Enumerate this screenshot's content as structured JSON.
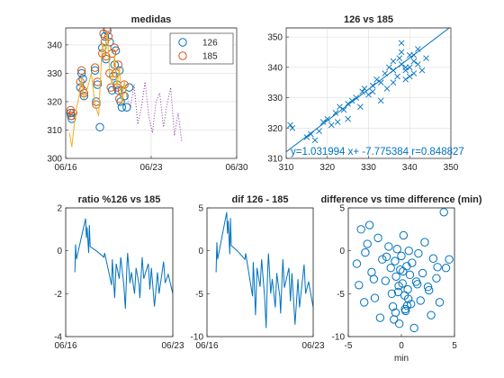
{
  "figure": {
    "background": "#ffffff"
  },
  "chart_data": [
    {
      "id": "medidas",
      "type": "line",
      "title": "medidas",
      "xlabel": "",
      "ylabel": "",
      "xlim": [
        0,
        14
      ],
      "ylim": [
        300,
        346
      ],
      "xticks": [
        0,
        7,
        14
      ],
      "xtick_labels": [
        "06/16",
        "06/23",
        "06/30"
      ],
      "yticks": [
        300,
        310,
        320,
        330,
        340
      ],
      "grid": true,
      "legend": {
        "location": "top-right",
        "entries": [
          "126",
          "185"
        ]
      },
      "series": [
        {
          "name": "126",
          "color": "#0072BD",
          "marker": "circle",
          "x": [
            0.4,
            0.45,
            0.5,
            1.2,
            1.3,
            1.4,
            1.5,
            2.4,
            2.5,
            2.6,
            2.8,
            3.0,
            3.2,
            3.3,
            3.4,
            3.6,
            3.8,
            3.9,
            4.0,
            4.1,
            4.2,
            4.3,
            4.4,
            4.5,
            4.6,
            4.8,
            5.0,
            5.2
          ],
          "y": [
            316,
            315,
            314,
            325,
            330,
            328,
            322,
            331,
            320,
            326,
            311,
            339,
            343,
            335,
            345,
            341,
            324,
            329,
            333,
            338,
            326,
            324,
            331,
            320,
            318,
            322,
            318,
            325
          ]
        },
        {
          "name": "185",
          "color": "#D95319",
          "marker": "circle",
          "x": [
            0.4,
            0.5,
            0.6,
            1.2,
            1.3,
            1.4,
            1.5,
            2.4,
            2.5,
            2.6,
            3.0,
            3.1,
            3.2,
            3.3,
            3.4,
            3.5,
            3.6,
            3.7,
            3.8,
            4.0,
            4.1,
            4.2,
            4.3,
            4.4,
            4.6,
            4.8
          ],
          "y": [
            317,
            315,
            316,
            327,
            331,
            324,
            323,
            332,
            319,
            327,
            337,
            344,
            341,
            336,
            346,
            343,
            330,
            325,
            337,
            339,
            330,
            325,
            333,
            321,
            324,
            326
          ]
        },
        {
          "name": "",
          "color": "#EDB120",
          "style": "line",
          "x": [
            0.3,
            0.5,
            0.7,
            0.9,
            1.1,
            1.3,
            1.5,
            1.8,
            2.1,
            2.4,
            2.7,
            3.0,
            3.2,
            3.4,
            3.6,
            3.8,
            4.0,
            4.2,
            4.4,
            4.6,
            4.8,
            5.0
          ],
          "y": [
            309,
            304,
            312,
            318,
            322,
            328,
            321,
            325,
            330,
            319,
            315,
            341,
            336,
            345,
            330,
            326,
            337,
            325,
            332,
            319,
            327,
            322
          ]
        },
        {
          "name": "",
          "color": "#7E2F8E",
          "style": "dotted",
          "x": [
            5.0,
            5.3,
            5.6,
            5.9,
            6.2,
            6.5,
            6.8,
            7.1,
            7.4,
            7.7,
            8.0,
            8.3,
            8.6,
            8.9,
            9.2,
            9.5
          ],
          "y": [
            322,
            318,
            326,
            312,
            318,
            327,
            315,
            309,
            320,
            323,
            311,
            319,
            325,
            308,
            316,
            306
          ]
        }
      ]
    },
    {
      "id": "scatter",
      "type": "scatter",
      "title": "126 vs 185",
      "xlim": [
        310,
        350
      ],
      "ylim": [
        310,
        353
      ],
      "xticks": [
        310,
        320,
        330,
        340,
        350
      ],
      "yticks": [
        310,
        320,
        330,
        340,
        350
      ],
      "grid": true,
      "annotation": "y=1.031994 x+ -7.775384 r=0.848827",
      "fit": {
        "slope": 1.031994,
        "intercept": -7.775384
      },
      "series": [
        {
          "name": "",
          "color": "#0072BD",
          "marker": "x",
          "x": [
            311,
            311.5,
            315,
            316,
            317,
            318,
            319,
            320,
            321,
            322,
            322.5,
            323,
            324,
            325,
            325,
            326,
            327,
            328,
            328.5,
            329,
            330,
            331,
            332,
            333,
            334,
            334.5,
            335,
            336,
            336,
            337,
            337.5,
            338,
            338,
            339,
            339,
            340,
            340,
            341,
            341,
            342,
            342,
            343,
            344,
            336,
            338,
            340,
            339,
            341,
            333,
            331
          ],
          "y": [
            321,
            320,
            317,
            318,
            316,
            319,
            322,
            323,
            321,
            325,
            322,
            327,
            326,
            328,
            323,
            329,
            330,
            327,
            332,
            333,
            331,
            334,
            336,
            335,
            338,
            333,
            340,
            339,
            342,
            337,
            343,
            341,
            345,
            339,
            336,
            340,
            344,
            338,
            342,
            341,
            346,
            339,
            343,
            335,
            348,
            337,
            340,
            344,
            329,
            332
          ]
        }
      ]
    },
    {
      "id": "ratio",
      "type": "line",
      "title": "ratio %126 vs 185",
      "xlim": [
        0,
        7
      ],
      "ylim": [
        -4,
        2
      ],
      "xticks": [
        0,
        7
      ],
      "xtick_labels": [
        "06/16",
        "06/23"
      ],
      "yticks": [
        -4,
        -2,
        0,
        2
      ],
      "grid": false,
      "series": [
        {
          "name": "",
          "color": "#0072BD",
          "x": [
            0.6,
            0.65,
            0.7,
            1.3,
            1.35,
            1.4,
            1.5,
            1.55,
            1.6,
            2.0,
            2.5,
            2.55,
            3.0,
            3.05,
            3.1,
            3.2,
            3.3,
            3.5,
            3.6,
            3.8,
            3.9,
            4.0,
            4.05,
            4.2,
            4.3,
            4.5,
            4.6,
            4.8,
            4.85,
            5.0,
            5.1,
            5.4,
            5.5,
            5.6,
            5.8,
            6.0,
            6.1,
            6.4,
            6.5,
            6.7,
            7.0
          ],
          "y": [
            -1.0,
            0.3,
            -0.4,
            1.5,
            0.6,
            1.1,
            -0.1,
            1.2,
            0.2,
            0.0,
            -0.3,
            -0.1,
            -1.6,
            -0.4,
            -1.0,
            -2.2,
            -0.6,
            -1.3,
            -0.3,
            -1.6,
            -2.7,
            -0.7,
            -0.1,
            -1.5,
            -1.0,
            -2.0,
            -0.8,
            -1.6,
            -2.2,
            -0.3,
            -1.3,
            -0.6,
            -1.8,
            -0.8,
            -2.6,
            -1.0,
            -2.0,
            -0.5,
            -1.5,
            -1.1,
            -2.0
          ]
        }
      ]
    },
    {
      "id": "dif",
      "type": "line",
      "title": "dif 126 - 185",
      "xlim": [
        0,
        7
      ],
      "ylim": [
        -10,
        5
      ],
      "xticks": [
        0,
        7
      ],
      "xtick_labels": [
        "06/16",
        "06/23"
      ],
      "yticks": [
        -10,
        -5,
        0,
        5
      ],
      "grid": false,
      "series": [
        {
          "name": "",
          "color": "#0072BD",
          "x": [
            0.6,
            0.65,
            0.7,
            1.3,
            1.35,
            1.4,
            1.5,
            1.55,
            1.6,
            2.0,
            2.5,
            2.55,
            3.0,
            3.05,
            3.1,
            3.2,
            3.3,
            3.5,
            3.6,
            3.8,
            3.9,
            4.0,
            4.05,
            4.2,
            4.3,
            4.5,
            4.6,
            4.8,
            4.85,
            5.0,
            5.1,
            5.4,
            5.5,
            5.6,
            5.8,
            6.0,
            6.1,
            6.4,
            6.5,
            6.7,
            7.0
          ],
          "y": [
            -2.5,
            1.0,
            -1.0,
            4.5,
            2.0,
            3.5,
            -0.4,
            3.8,
            0.6,
            0.0,
            -1.0,
            -0.3,
            -5.3,
            -1.3,
            -3.3,
            -7.5,
            -2.0,
            -4.2,
            -1.0,
            -5.5,
            -9.0,
            -2.3,
            -0.3,
            -5.0,
            -3.3,
            -6.6,
            -2.6,
            -5.3,
            -7.3,
            -1.0,
            -4.3,
            -2.0,
            -5.9,
            -2.6,
            -8.6,
            -3.3,
            -6.6,
            -1.6,
            -5.0,
            -3.6,
            -6.6
          ]
        }
      ]
    },
    {
      "id": "difftime",
      "type": "scatter",
      "title": "difference vs time difference (min)",
      "xlabel": "min",
      "xlim": [
        -5,
        5
      ],
      "ylim": [
        -10,
        5
      ],
      "xticks": [
        -5,
        0,
        5
      ],
      "yticks": [
        -10,
        -5,
        0,
        5
      ],
      "grid": false,
      "series": [
        {
          "name": "",
          "color": "#0072BD",
          "marker": "circle",
          "x": [
            -4.2,
            -4.0,
            -3.8,
            -3.5,
            -3.2,
            -3.0,
            -2.8,
            -2.5,
            -2.2,
            -2.0,
            -1.8,
            -1.5,
            -1.2,
            -1.0,
            -0.8,
            -0.6,
            -0.5,
            -0.4,
            -0.3,
            -0.2,
            -0.1,
            0.0,
            0.1,
            0.2,
            0.3,
            0.4,
            0.5,
            0.6,
            0.7,
            0.8,
            0.9,
            1.0,
            1.2,
            1.4,
            1.6,
            1.8,
            2.0,
            2.2,
            2.5,
            2.8,
            3.0,
            3.3,
            3.6,
            4.0,
            4.2,
            4.5,
            -0.9,
            -0.7,
            0.65,
            0.35,
            -0.25,
            0.15,
            -1.4,
            1.5,
            -2.6,
            2.6,
            -3.4,
            3.4,
            -0.55,
            0.55
          ],
          "y": [
            -1.5,
            -4.0,
            2.5,
            -6.0,
            0.8,
            3.0,
            -2.5,
            -5.5,
            1.5,
            -7.8,
            -1.0,
            -3.5,
            0.5,
            -2.0,
            -6.5,
            -1.2,
            -3.0,
            0.2,
            -4.8,
            -8.5,
            -2.2,
            -0.6,
            -3.8,
            1.8,
            -5.2,
            -7.0,
            -1.8,
            -4.5,
            0.0,
            -2.8,
            -6.2,
            -1.4,
            -9.0,
            -3.6,
            -0.3,
            -5.8,
            -2.6,
            1.0,
            -4.2,
            -7.5,
            -0.9,
            -3.2,
            -6.0,
            4.5,
            -2.0,
            -1.0,
            -5.0,
            -8.0,
            -5.6,
            -6.8,
            -4.1,
            -2.4,
            -0.7,
            -3.9,
            -3.3,
            -4.6,
            -0.2,
            -1.9,
            -7.2,
            -6.4
          ]
        }
      ]
    }
  ]
}
